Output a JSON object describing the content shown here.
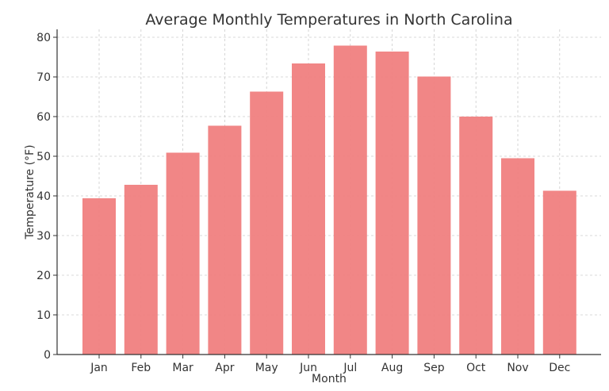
{
  "chart_data": {
    "type": "bar",
    "title": "Average Monthly Temperatures in North Carolina",
    "xlabel": "Month",
    "ylabel": "Temperature (°F)",
    "categories": [
      "Jan",
      "Feb",
      "Mar",
      "Apr",
      "May",
      "Jun",
      "Jul",
      "Aug",
      "Sep",
      "Oct",
      "Nov",
      "Dec"
    ],
    "values": [
      39.4,
      42.8,
      50.9,
      57.7,
      66.3,
      73.4,
      77.9,
      76.4,
      70.1,
      60.0,
      49.5,
      41.3
    ],
    "ylim": [
      0,
      82
    ],
    "yticks": [
      0,
      10,
      20,
      30,
      40,
      50,
      60,
      70,
      80
    ],
    "grid": true,
    "bar_color": "#f08080"
  }
}
